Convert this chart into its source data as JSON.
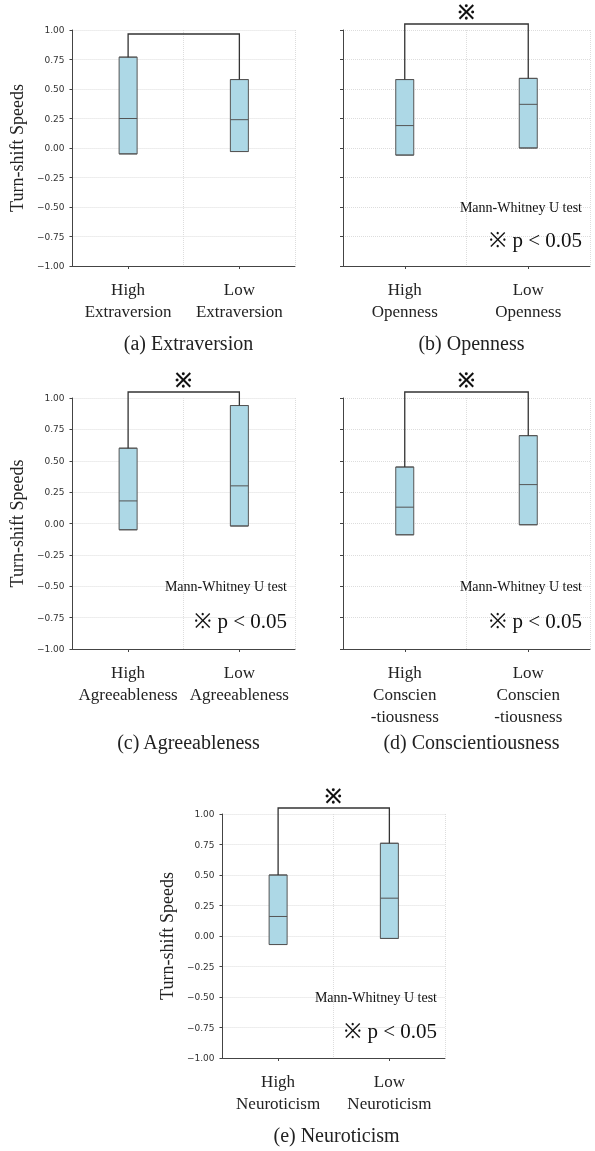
{
  "chart_data": [
    {
      "type": "box",
      "title": "(a) Extraversion",
      "ylabel": "Turn-shift Speeds",
      "categories": [
        "High\nExtraversion",
        "Low\nExtraversion"
      ],
      "series": [
        {
          "color": "#add8e6",
          "boxes": [
            {
              "low": -0.05,
              "q1": -0.05,
              "median": 0.25,
              "q3": 0.77,
              "high": 0.77
            },
            {
              "low": -0.03,
              "q1": -0.03,
              "median": 0.24,
              "q3": 0.58,
              "high": 0.58
            }
          ]
        }
      ],
      "ylim": [
        -1,
        1
      ],
      "yticks": [
        {
          "value": -1,
          "label": "−1.00"
        },
        {
          "value": -0.75,
          "label": "−0.75"
        },
        {
          "value": -0.5,
          "label": "−0.50"
        },
        {
          "value": -0.25,
          "label": "−0.25"
        },
        {
          "value": 0,
          "label": "0.00"
        },
        {
          "value": 0.25,
          "label": "0.25"
        },
        {
          "value": 0.5,
          "label": "0.50"
        },
        {
          "value": 0.75,
          "label": "0.75"
        },
        {
          "value": 1,
          "label": "1.00"
        }
      ],
      "grid": true
    },
    {
      "type": "box",
      "title": "(b) Openness",
      "categories": [
        "High\nOpenness",
        "Low\nOpenness"
      ],
      "series": [
        {
          "color": "#add8e6",
          "boxes": [
            {
              "low": -0.06,
              "q1": -0.06,
              "median": 0.19,
              "q3": 0.58,
              "high": 0.58
            },
            {
              "low": 0,
              "q1": 0,
              "median": 0.37,
              "q3": 0.59,
              "high": 0.59
            }
          ]
        }
      ],
      "ylim": [
        -1,
        1
      ],
      "yticks": [
        {
          "value": -1,
          "label": null
        },
        {
          "value": -0.75,
          "label": null
        },
        {
          "value": -0.5,
          "label": null
        },
        {
          "value": -0.25,
          "label": null
        },
        {
          "value": 0,
          "label": null
        },
        {
          "value": 0.25,
          "label": null
        },
        {
          "value": 0.5,
          "label": null
        },
        {
          "value": 0.75,
          "label": null
        },
        {
          "value": 1,
          "label": null
        }
      ],
      "grid": true,
      "tick_labels": "x",
      "annotations": [
        "※",
        "Mann-Whitney U test",
        "※ p < 0.05"
      ]
    },
    {
      "type": "box",
      "title": "(c) Agreeableness",
      "ylabel": "Turn-shift Speeds",
      "categories": [
        "High\nAgreeableness",
        "Low\nAgreeableness"
      ],
      "series": [
        {
          "color": "#add8e6",
          "boxes": [
            {
              "low": -0.05,
              "q1": -0.05,
              "median": 0.18,
              "q3": 0.6,
              "high": 0.6
            },
            {
              "low": -0.02,
              "q1": -0.02,
              "median": 0.3,
              "q3": 0.94,
              "high": 0.94
            }
          ]
        }
      ],
      "ylim": [
        -1,
        1
      ],
      "yticks": [
        {
          "value": -1,
          "label": "−1.00"
        },
        {
          "value": -0.75,
          "label": "−0.75"
        },
        {
          "value": -0.5,
          "label": "−0.50"
        },
        {
          "value": -0.25,
          "label": "−0.25"
        },
        {
          "value": 0,
          "label": "0.00"
        },
        {
          "value": 0.25,
          "label": "0.25"
        },
        {
          "value": 0.5,
          "label": "0.50"
        },
        {
          "value": 0.75,
          "label": "0.75"
        },
        {
          "value": 1,
          "label": "1.00"
        }
      ],
      "grid": true,
      "annotations": [
        "※",
        "Mann-Whitney U test",
        "※ p < 0.05"
      ]
    },
    {
      "type": "box",
      "title": "(d) Conscientiousness",
      "categories": [
        "High\nConscien\n-tiousness",
        "Low\nConscien\n-tiousness"
      ],
      "series": [
        {
          "color": "#add8e6",
          "boxes": [
            {
              "low": -0.09,
              "q1": -0.09,
              "median": 0.13,
              "q3": 0.45,
              "high": 0.45
            },
            {
              "low": -0.01,
              "q1": -0.01,
              "median": 0.31,
              "q3": 0.7,
              "high": 0.7
            }
          ]
        }
      ],
      "ylim": [
        -1,
        1
      ],
      "yticks": [
        {
          "value": -1,
          "label": null
        },
        {
          "value": -0.75,
          "label": null
        },
        {
          "value": -0.5,
          "label": null
        },
        {
          "value": -0.25,
          "label": null
        },
        {
          "value": 0,
          "label": null
        },
        {
          "value": 0.25,
          "label": null
        },
        {
          "value": 0.5,
          "label": null
        },
        {
          "value": 0.75,
          "label": null
        },
        {
          "value": 1,
          "label": null
        }
      ],
      "grid": true,
      "tick_labels": "x",
      "annotations": [
        "※",
        "Mann-Whitney U test",
        "※ p < 0.05"
      ]
    },
    {
      "type": "box",
      "title": "(e) Neuroticism",
      "ylabel": "Turn-shift Speeds",
      "categories": [
        "High\nNeuroticism",
        "Low\nNeuroticism"
      ],
      "series": [
        {
          "color": "#add8e6",
          "boxes": [
            {
              "low": -0.07,
              "q1": -0.07,
              "median": 0.16,
              "q3": 0.5,
              "high": 0.5
            },
            {
              "low": -0.02,
              "q1": -0.02,
              "median": 0.31,
              "q3": 0.76,
              "high": 0.76
            }
          ]
        }
      ],
      "ylim": [
        -1,
        1
      ],
      "yticks": [
        {
          "value": -1,
          "label": "−1.00"
        },
        {
          "value": -0.75,
          "label": "−0.75"
        },
        {
          "value": -0.5,
          "label": "−0.50"
        },
        {
          "value": -0.25,
          "label": "−0.25"
        },
        {
          "value": 0,
          "label": "0.00"
        },
        {
          "value": 0.25,
          "label": "0.25"
        },
        {
          "value": 0.5,
          "label": "0.50"
        },
        {
          "value": 0.75,
          "label": "0.75"
        },
        {
          "value": 1,
          "label": "1.00"
        }
      ],
      "grid": true,
      "annotations": [
        "※",
        "Mann-Whitney U test",
        "※ p < 0.05"
      ]
    }
  ]
}
